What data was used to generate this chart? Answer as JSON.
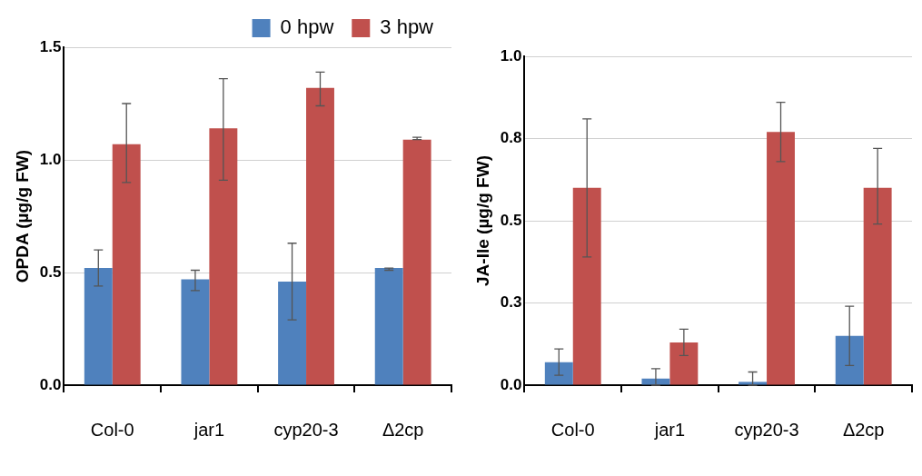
{
  "chart_data": [
    {
      "type": "bar",
      "ylabel": "OPDA (µg/g FW)",
      "categories": [
        "Col-0",
        "jar1",
        "cyp20-3",
        "Δ2cp"
      ],
      "ylim": [
        0,
        1.5
      ],
      "yticks": [
        {
          "value": 0,
          "label": "0.0"
        },
        {
          "value": 0.5,
          "label": "0.5"
        },
        {
          "value": 1,
          "label": "1.0"
        },
        {
          "value": 1.5,
          "label": "1.5"
        }
      ],
      "grid": "y",
      "legend": "top",
      "series": [
        {
          "name": "0 hpw",
          "color": "#4f81bd",
          "values": [
            0.52,
            0.47,
            0.46,
            0.52
          ],
          "errors": [
            [
              0.44,
              0.6
            ],
            [
              0.42,
              0.51
            ],
            [
              0.29,
              0.63
            ],
            [
              0.51,
              0.52
            ]
          ]
        },
        {
          "name": "3 hpw",
          "color": "#c0504d",
          "values": [
            1.07,
            1.14,
            1.32,
            1.09
          ],
          "errors": [
            [
              0.9,
              1.25
            ],
            [
              0.91,
              1.36
            ],
            [
              1.24,
              1.39
            ],
            [
              1.09,
              1.1
            ]
          ]
        }
      ]
    },
    {
      "type": "bar",
      "ylabel": "JA-Ile (µg/g FW)",
      "categories": [
        "Col-0",
        "jar1",
        "cyp20-3",
        "Δ2cp"
      ],
      "ylim": [
        0,
        1
      ],
      "yticks": [
        {
          "value": 0,
          "label": "0.0"
        },
        {
          "value": 0.25,
          "label": "0.3"
        },
        {
          "value": 0.5,
          "label": "0.5"
        },
        {
          "value": 0.75,
          "label": "0.8"
        },
        {
          "value": 1,
          "label": "1.0"
        }
      ],
      "grid": "y",
      "legend": false,
      "series": [
        {
          "color": "#4f81bd",
          "values": [
            0.07,
            0.02,
            0.01,
            0.15
          ],
          "errors": [
            [
              0.03,
              0.11
            ],
            [
              0,
              0.05
            ],
            [
              0,
              0.04
            ],
            [
              0.06,
              0.24
            ]
          ]
        },
        {
          "color": "#c0504d",
          "values": [
            0.6,
            0.13,
            0.77,
            0.6
          ],
          "errors": [
            [
              0.39,
              0.81
            ],
            [
              0.09,
              0.17
            ],
            [
              0.68,
              0.86
            ],
            [
              0.49,
              0.72
            ]
          ]
        }
      ]
    }
  ]
}
